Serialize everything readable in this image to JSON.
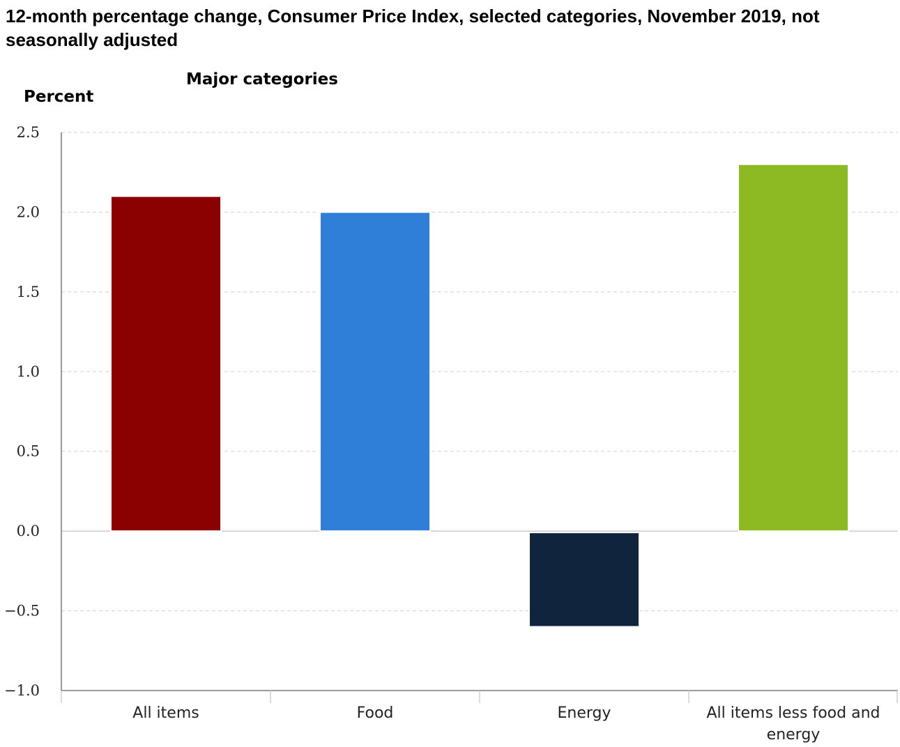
{
  "chart_data": {
    "type": "bar",
    "title": "12-month percentage change, Consumer Price Index, selected categories, November 2019, not seasonally adjusted",
    "subtitle": "Major categories",
    "ylabel": "Percent",
    "xlabel": "",
    "categories": [
      "All items",
      "Food",
      "Energy",
      "All items less food and energy"
    ],
    "category_lines": [
      [
        "All items"
      ],
      [
        "Food"
      ],
      [
        "Energy"
      ],
      [
        "All items less food and",
        "energy"
      ]
    ],
    "values": [
      2.1,
      2.0,
      -0.6,
      2.3
    ],
    "colors": [
      "#8b0000",
      "#2f7fd8",
      "#10253d",
      "#8dba22"
    ],
    "ylim": [
      -1.0,
      2.5
    ],
    "yticks": [
      2.5,
      2.0,
      1.5,
      1.0,
      0.5,
      0.0,
      -0.5,
      -1.0
    ],
    "ytick_labels": [
      "2.5",
      "2.0",
      "1.5",
      "1.0",
      "0.5",
      "0.0",
      "−0.5",
      "−1.0"
    ],
    "grid": true,
    "legend": "none"
  }
}
